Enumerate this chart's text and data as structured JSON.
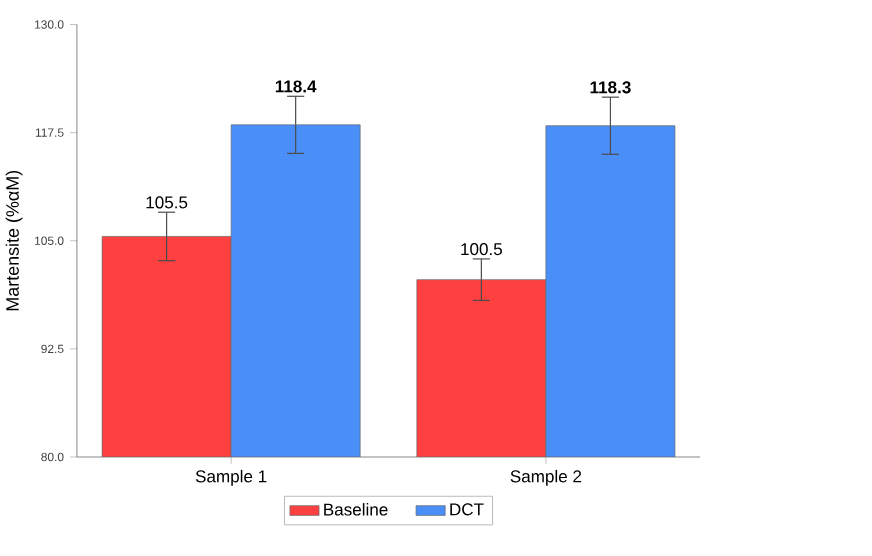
{
  "chart_data": {
    "type": "bar",
    "ylabel": "Martensite (%αM)",
    "categories": [
      "Sample 1",
      "Sample 2"
    ],
    "series": [
      {
        "name": "Baseline",
        "color": "#ff4040",
        "values": [
          105.5,
          100.5
        ],
        "errors": [
          2.8,
          2.4
        ],
        "value_labels": [
          "105.5",
          "100.5"
        ]
      },
      {
        "name": "DCT",
        "color": "#4a8ff7",
        "values": [
          118.4,
          118.3
        ],
        "errors": [
          3.3,
          3.3
        ],
        "value_labels": [
          "118.4",
          "118.3"
        ]
      }
    ],
    "ylim": [
      80,
      130
    ],
    "yticks": [
      {
        "value": 80,
        "label": "80.0"
      },
      {
        "value": 92.5,
        "label": "92.5"
      },
      {
        "value": 105,
        "label": "105.0"
      },
      {
        "value": 117.5,
        "label": "117.5"
      },
      {
        "value": 130,
        "label": "130.0"
      }
    ],
    "grid": false,
    "legend": "bottom"
  }
}
